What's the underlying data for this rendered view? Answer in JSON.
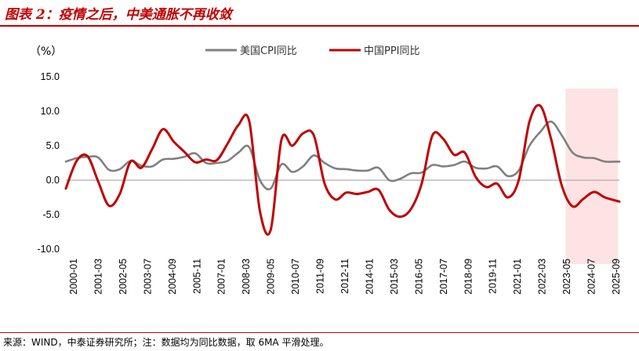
{
  "header": {
    "title": "图表 2：疫情之后，中美通胀不再收敛"
  },
  "footer": {
    "source": "来源：WIND，中泰证券研究所；注：数据均为同比数据，取 6MA 平滑处理。"
  },
  "chart_data": {
    "type": "line",
    "title": "图表 2：疫情之后，中美通胀不再收敛",
    "ylabel": "（%）",
    "xlabel": "",
    "ylim": [
      -10,
      15
    ],
    "yticks": [
      15,
      10,
      5,
      0,
      -5,
      -10
    ],
    "ytick_labels": [
      "15.0",
      "10.0",
      "5.0",
      "0.0",
      "-5.0",
      "-10.0"
    ],
    "xtick_labels": [
      "2000-01",
      "2001-03",
      "2002-05",
      "2003-07",
      "2004-09",
      "2005-11",
      "2007-01",
      "2008-03",
      "2009-05",
      "2010-07",
      "2011-09",
      "2012-11",
      "2014-01",
      "2015-03",
      "2016-05",
      "2017-07",
      "2018-09",
      "2019-11",
      "2021-01",
      "2022-03",
      "2023-05",
      "2024-07",
      "2025-09"
    ],
    "x_range": [
      2000.0,
      2025.67
    ],
    "highlight_region": {
      "from": 2023.17,
      "to": 2025.67,
      "color": "#fde3e3"
    },
    "legend_position": "top-center",
    "series": [
      {
        "name": "美国CPI同比",
        "color": "#808080",
        "x": [
          2000.0,
          2000.5,
          2001.0,
          2001.5,
          2002.0,
          2002.5,
          2003.0,
          2003.5,
          2004.0,
          2004.5,
          2005.0,
          2005.5,
          2006.0,
          2006.5,
          2007.0,
          2007.5,
          2008.0,
          2008.5,
          2009.0,
          2009.5,
          2010.0,
          2010.5,
          2011.0,
          2011.5,
          2012.0,
          2012.5,
          2013.0,
          2013.5,
          2014.0,
          2014.5,
          2015.0,
          2015.5,
          2016.0,
          2016.5,
          2017.0,
          2017.5,
          2018.0,
          2018.5,
          2019.0,
          2019.5,
          2020.0,
          2020.5,
          2021.0,
          2021.5,
          2022.0,
          2022.5,
          2023.0,
          2023.5,
          2024.0,
          2024.5,
          2025.0,
          2025.67
        ],
        "values": [
          2.7,
          3.2,
          3.4,
          3.3,
          1.5,
          1.6,
          2.8,
          2.1,
          2.0,
          3.0,
          3.1,
          3.4,
          3.9,
          2.5,
          2.5,
          2.8,
          4.0,
          4.8,
          0.0,
          -1.2,
          2.3,
          1.2,
          2.0,
          3.6,
          2.5,
          1.7,
          1.6,
          1.4,
          1.4,
          1.8,
          0.0,
          0.2,
          1.0,
          1.1,
          2.2,
          2.0,
          2.2,
          2.7,
          1.8,
          1.7,
          2.0,
          0.6,
          1.4,
          5.0,
          7.0,
          8.5,
          6.5,
          4.0,
          3.3,
          3.2,
          2.7,
          2.7
        ]
      },
      {
        "name": "中国PPI同比",
        "color": "#c00000",
        "x": [
          2000.0,
          2000.5,
          2001.0,
          2001.5,
          2002.0,
          2002.5,
          2003.0,
          2003.5,
          2004.0,
          2004.5,
          2005.0,
          2005.5,
          2006.0,
          2006.5,
          2007.0,
          2007.5,
          2008.0,
          2008.5,
          2009.0,
          2009.5,
          2010.0,
          2010.5,
          2011.0,
          2011.5,
          2012.0,
          2012.5,
          2013.0,
          2013.5,
          2014.0,
          2014.5,
          2015.0,
          2015.5,
          2016.0,
          2016.5,
          2017.0,
          2017.5,
          2018.0,
          2018.5,
          2019.0,
          2019.5,
          2020.0,
          2020.5,
          2021.0,
          2021.5,
          2022.0,
          2022.5,
          2023.0,
          2023.5,
          2024.0,
          2024.5,
          2025.0,
          2025.67
        ],
        "values": [
          -1.2,
          2.8,
          3.5,
          -0.2,
          -3.7,
          -2.0,
          2.7,
          1.8,
          4.5,
          7.4,
          5.6,
          4.1,
          2.6,
          3.0,
          2.9,
          5.3,
          8.0,
          8.6,
          -4.5,
          -7.2,
          5.9,
          5.0,
          6.8,
          6.5,
          -0.5,
          -2.8,
          -1.8,
          -2.0,
          -1.7,
          -1.4,
          -4.3,
          -5.3,
          -4.2,
          -0.5,
          6.5,
          6.0,
          3.7,
          4.0,
          0.5,
          -1.0,
          -0.5,
          -2.5,
          0.0,
          8.5,
          10.8,
          6.0,
          -0.8,
          -3.8,
          -2.7,
          -1.7,
          -2.5,
          -3.1
        ]
      }
    ]
  }
}
